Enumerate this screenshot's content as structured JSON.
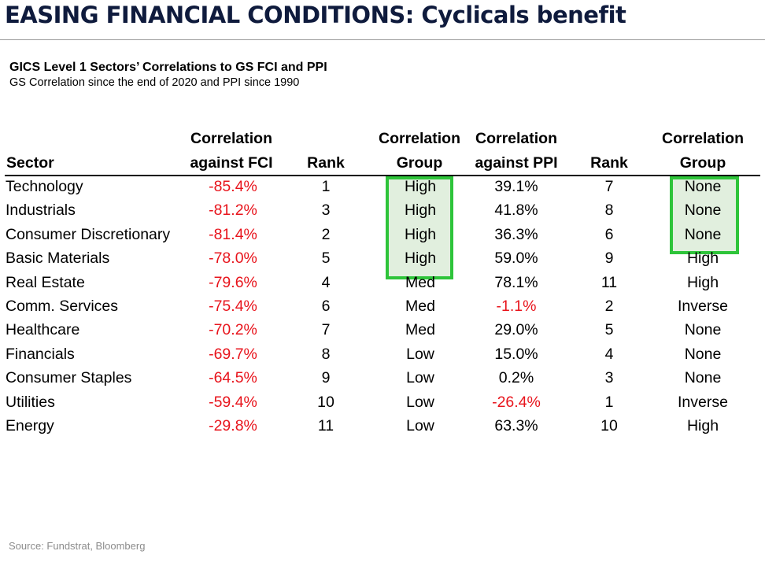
{
  "title": "EASING FINANCIAL CONDITIONS: Cyclicals benefit",
  "subtitle": "GICS Level 1 Sectors’ Correlations to GS FCI and PPI",
  "subsubtitle": "GS Correlation since the end of 2020 and PPI since 1990",
  "table": {
    "headers": {
      "sector": "Sector",
      "fci_line1": "Correlation",
      "fci_line2": "against FCI",
      "rank1": "Rank",
      "group1_line1": "Correlation",
      "group1_line2": "Group",
      "ppi_line1": "Correlation",
      "ppi_line2": "against PPI",
      "rank2": "Rank",
      "group2_line1": "Correlation",
      "group2_line2": "Group"
    },
    "rows": [
      {
        "sector": "Technology",
        "fci": "-85.4%",
        "rank1": "1",
        "group1": "High",
        "ppi": "39.1%",
        "rank2": "7",
        "group2": "None"
      },
      {
        "sector": "Industrials",
        "fci": "-81.2%",
        "rank1": "3",
        "group1": "High",
        "ppi": "41.8%",
        "rank2": "8",
        "group2": "None"
      },
      {
        "sector": "Consumer Discretionary",
        "fci": "-81.4%",
        "rank1": "2",
        "group1": "High",
        "ppi": "36.3%",
        "rank2": "6",
        "group2": "None"
      },
      {
        "sector": "Basic Materials",
        "fci": "-78.0%",
        "rank1": "5",
        "group1": "High",
        "ppi": "59.0%",
        "rank2": "9",
        "group2": "High"
      },
      {
        "sector": "Real Estate",
        "fci": "-79.6%",
        "rank1": "4",
        "group1": "Med",
        "ppi": "78.1%",
        "rank2": "11",
        "group2": "High"
      },
      {
        "sector": "Comm. Services",
        "fci": "-75.4%",
        "rank1": "6",
        "group1": "Med",
        "ppi": "-1.1%",
        "rank2": "2",
        "group2": "Inverse"
      },
      {
        "sector": "Healthcare",
        "fci": "-70.2%",
        "rank1": "7",
        "group1": "Med",
        "ppi": "29.0%",
        "rank2": "5",
        "group2": "None"
      },
      {
        "sector": "Financials",
        "fci": "-69.7%",
        "rank1": "8",
        "group1": "Low",
        "ppi": "15.0%",
        "rank2": "4",
        "group2": "None"
      },
      {
        "sector": "Consumer Staples",
        "fci": "-64.5%",
        "rank1": "9",
        "group1": "Low",
        "ppi": "0.2%",
        "rank2": "3",
        "group2": "None"
      },
      {
        "sector": "Utilities",
        "fci": "-59.4%",
        "rank1": "10",
        "group1": "Low",
        "ppi": "-26.4%",
        "rank2": "1",
        "group2": "Inverse"
      },
      {
        "sector": "Energy",
        "fci": "-29.8%",
        "rank1": "11",
        "group1": "Low",
        "ppi": "63.3%",
        "rank2": "10",
        "group2": "High"
      }
    ]
  },
  "source": "Source: Fundstrat, Bloomberg",
  "colors": {
    "title": "#0f1b3d",
    "negative": "#e8141c",
    "highlight_border": "#2ec43a"
  }
}
